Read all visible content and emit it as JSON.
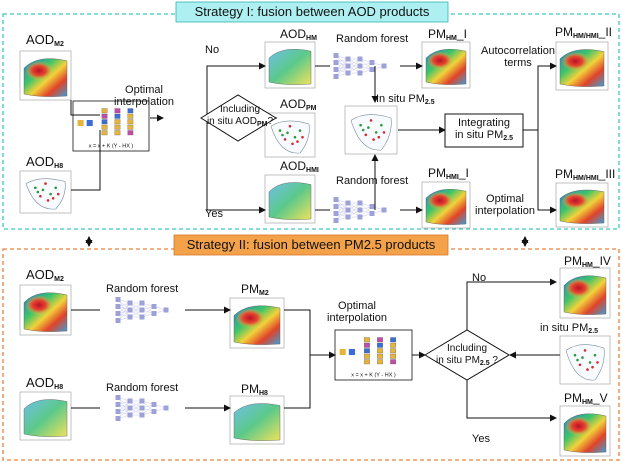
{
  "strategy1": {
    "banner": "Strategy I: fusion between AOD products",
    "inputs": {
      "aod_m2": "AOD",
      "aod_m2_sub": "M2",
      "aod_h8": "AOD",
      "aod_h8_sub": "H8"
    },
    "optimal_interpolation": "Optimal\ninterpolation",
    "decision": {
      "line1": "Including",
      "line2": "in situ AOD",
      "sub": "PM",
      "suffix": "?"
    },
    "no": "No",
    "yes": "Yes",
    "aod_hm": {
      "main": "AOD",
      "sub": "HM"
    },
    "aod_pm": {
      "main": "AOD",
      "sub": "PM"
    },
    "aod_hmi": {
      "main": "AOD",
      "sub": "HMI"
    },
    "random_forest_top": "Random forest",
    "random_forest_bottom": "Random forest",
    "in_situ": {
      "main": "In situ PM",
      "sub": "2.5"
    },
    "pm_hm_1": {
      "main": "PM",
      "sub": "HM",
      "suffix": "_I"
    },
    "pm_hmi_1": {
      "main": "PM",
      "sub": "HMI",
      "suffix": "_I"
    },
    "integrating": {
      "line1": "Integrating",
      "line2": "in situ PM",
      "sub": "2.5"
    },
    "autocorrelation": "Autocorrelation\nterms",
    "optimal_interpolation2": "Optimal\ninterpolation",
    "pm_2": {
      "main": "PM",
      "sub": "HM/HMI",
      "suffix": "_II"
    },
    "pm_3": {
      "main": "PM",
      "sub": "HM/HMI",
      "suffix": "_III"
    }
  },
  "strategy2": {
    "banner": "Strategy II: fusion between PM2.5 products",
    "inputs": {
      "aod_m2": "AOD",
      "aod_m2_sub": "M2",
      "aod_h8": "AOD",
      "aod_h8_sub": "H8"
    },
    "random_forest_top": "Random forest",
    "random_forest_bottom": "Random forest",
    "pm_m2": {
      "main": "PM",
      "sub": "M2"
    },
    "pm_h8": {
      "main": "PM",
      "sub": "H8"
    },
    "optimal_interpolation": "Optimal\ninterpolation",
    "decision": {
      "line1": "Including",
      "line2": "in situ PM",
      "sub": "2.5",
      "suffix": " ?"
    },
    "no": "No",
    "yes": "Yes",
    "pm_4": {
      "main": "PM",
      "sub": "HM",
      "suffix": "_IV"
    },
    "in_situ": {
      "main": "in situ PM",
      "sub": "2.5"
    },
    "pm_5": {
      "main": "PM",
      "sub": "HM",
      "suffix": "_V"
    }
  },
  "equation": {
    "line1": "x = x + K (Y - HX )",
    "labels": [
      "K",
      "Y",
      "HX"
    ]
  },
  "colors": {
    "strategy1_border": "#3ec8c0",
    "strategy1_banner": "#aef0f2",
    "strategy2_border": "#e8823a",
    "strategy2_banner": "#f4a24a",
    "network_node": "#9ea0d8",
    "arrow": "#111111"
  }
}
